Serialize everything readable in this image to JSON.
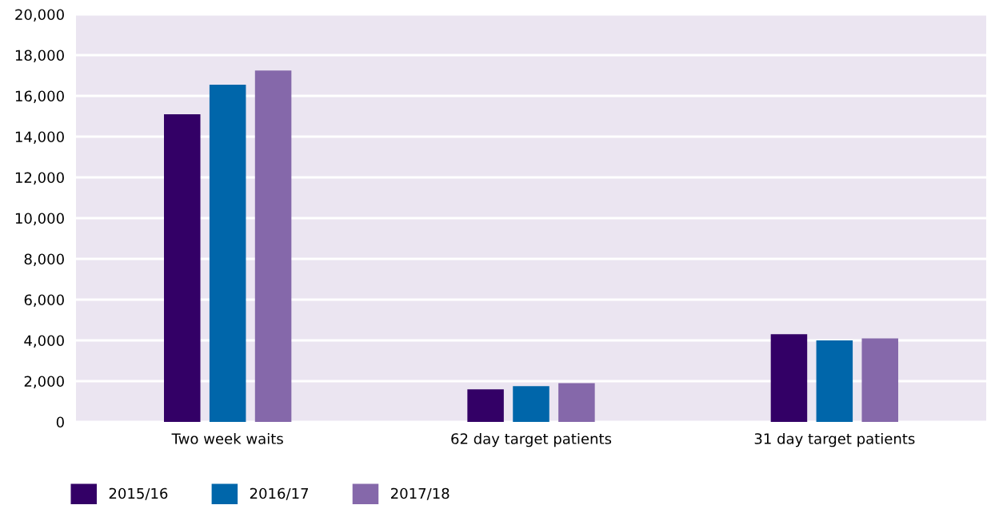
{
  "chart_data": {
    "type": "bar",
    "categories": [
      "Two week waits",
      "62 day target patients",
      "31 day target patients"
    ],
    "series": [
      {
        "name": "2015/16",
        "color": "#330066",
        "values": [
          15100,
          1600,
          4300
        ]
      },
      {
        "name": "2016/17",
        "color": "#0066aa",
        "values": [
          16550,
          1750,
          4000
        ]
      },
      {
        "name": "2017/18",
        "color": "#8568aa",
        "values": [
          17250,
          1900,
          4100
        ]
      }
    ],
    "ylim": [
      0,
      20000
    ],
    "yticks": [
      {
        "value": 0,
        "label": "0"
      },
      {
        "value": 2000,
        "label": "2,000"
      },
      {
        "value": 4000,
        "label": "4,000"
      },
      {
        "value": 6000,
        "label": "6,000"
      },
      {
        "value": 8000,
        "label": "8,000"
      },
      {
        "value": 10000,
        "label": "10,000"
      },
      {
        "value": 12000,
        "label": "12,000"
      },
      {
        "value": 14000,
        "label": "14,000"
      },
      {
        "value": 16000,
        "label": "16,000"
      },
      {
        "value": 18000,
        "label": "18,000"
      },
      {
        "value": 20000,
        "label": "20,000"
      }
    ],
    "grid": "y",
    "legend": "bottom left"
  }
}
